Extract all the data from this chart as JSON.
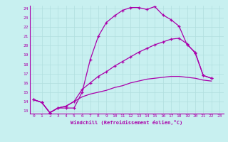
{
  "xlabel": "Windchill (Refroidissement éolien,°C)",
  "bg_color": "#c8f0f0",
  "grid_color": "#b0dede",
  "line_color": "#aa00aa",
  "xmin": 0,
  "xmax": 23,
  "ymin": 13,
  "ymax": 24,
  "series": [
    [
      14.2,
      13.9,
      12.8,
      13.3,
      13.3,
      13.3,
      15.0,
      18.5,
      21.0,
      22.5,
      23.2,
      23.8,
      24.1,
      24.1,
      23.9,
      24.2,
      23.3,
      22.8,
      22.1,
      20.1,
      19.3,
      16.8,
      16.5
    ],
    [
      14.2,
      13.9,
      12.8,
      13.3,
      13.5,
      14.0,
      15.3,
      16.0,
      16.7,
      17.2,
      17.8,
      18.3,
      18.8,
      19.3,
      19.7,
      20.1,
      20.4,
      20.7,
      20.8,
      20.2,
      19.2,
      16.8,
      16.5
    ],
    [
      14.2,
      13.9,
      12.8,
      13.3,
      13.5,
      14.0,
      14.5,
      14.8,
      15.0,
      15.2,
      15.5,
      15.7,
      16.0,
      16.2,
      16.4,
      16.5,
      16.6,
      16.7,
      16.7,
      16.6,
      16.5,
      16.3,
      16.2
    ]
  ],
  "yticks": [
    13,
    14,
    15,
    16,
    17,
    18,
    19,
    20,
    21,
    22,
    23,
    24
  ],
  "xticks": [
    0,
    1,
    2,
    3,
    4,
    5,
    6,
    7,
    8,
    9,
    10,
    11,
    12,
    13,
    14,
    15,
    16,
    17,
    18,
    19,
    20,
    21,
    22,
    23
  ],
  "tick_fontsize": 4.5,
  "xlabel_fontsize": 5.0
}
